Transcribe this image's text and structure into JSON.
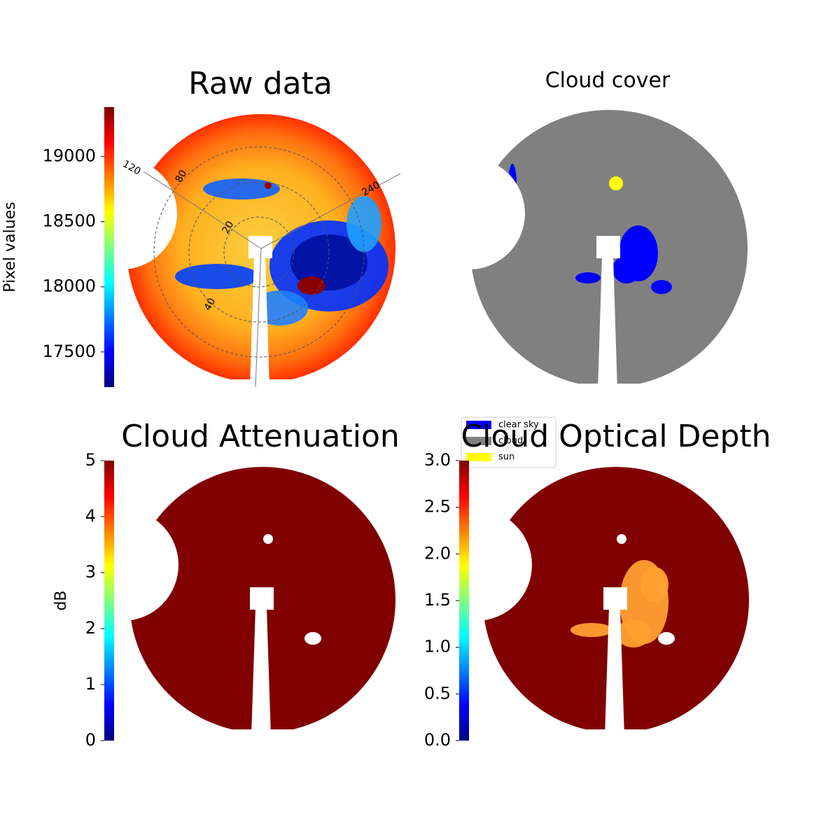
{
  "chart_data": [
    {
      "type": "image",
      "title": "Raw data",
      "colorbar": {
        "label": "Pixel values",
        "lim": [
          17230,
          19380
        ],
        "ticks": [
          17500,
          18000,
          18500,
          19000
        ]
      },
      "annotations": [
        "120",
        "80",
        "20",
        "40",
        "240"
      ]
    },
    {
      "type": "categorical-image",
      "title": "Cloud cover",
      "legend": [
        {
          "name": "clear sky",
          "color": "#0000ff"
        },
        {
          "name": "cloud",
          "color": "#808080"
        },
        {
          "name": "sun",
          "color": "#ffff00"
        }
      ]
    },
    {
      "type": "image",
      "title": "Cloud Attenuation",
      "colorbar": {
        "label": "dB",
        "lim": [
          0,
          5
        ],
        "ticks": [
          0,
          1,
          2,
          3,
          4,
          5
        ]
      }
    },
    {
      "type": "image",
      "title": "Cloud Optical Depth",
      "colorbar": {
        "lim": [
          0,
          3
        ],
        "ticks": [
          {
            "value": 0,
            "label": "0.0"
          },
          {
            "value": 0.5,
            "label": "0.5"
          },
          {
            "value": 1,
            "label": "1.0"
          },
          {
            "value": 1.5,
            "label": "1.5"
          },
          {
            "value": 2,
            "label": "2.0"
          },
          {
            "value": 2.5,
            "label": "2.5"
          },
          {
            "value": 3,
            "label": "3.0"
          }
        ]
      }
    }
  ]
}
